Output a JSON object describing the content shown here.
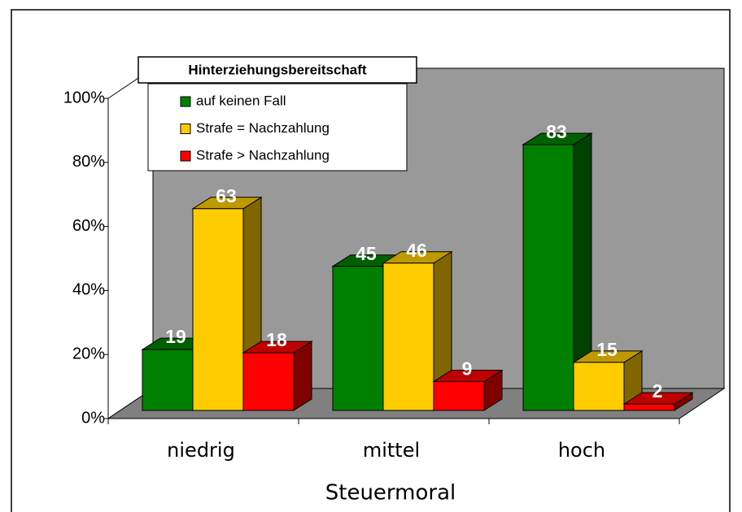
{
  "chart_data": {
    "type": "bar3d",
    "legend_title": "Hinterziehungsbereitschaft",
    "x_label": "Steuermoral",
    "categories": [
      "niedrig",
      "mittel",
      "hoch"
    ],
    "series": [
      {
        "name": "auf keinen Fall",
        "color": "#008000",
        "values": [
          19,
          45,
          83
        ]
      },
      {
        "name": "Strafe = Nachzahlung",
        "color": "#ffcc00",
        "values": [
          63,
          46,
          15
        ]
      },
      {
        "name": "Strafe > Nachzahlung",
        "color": "#ff0000",
        "values": [
          18,
          9,
          2
        ]
      }
    ],
    "ylim": [
      0,
      100
    ],
    "yticks": [
      {
        "value": 0,
        "label": "0%"
      },
      {
        "value": 20,
        "label": "20%"
      },
      {
        "value": 40,
        "label": "40%"
      },
      {
        "value": 60,
        "label": "60%"
      },
      {
        "value": 80,
        "label": "80%"
      },
      {
        "value": 100,
        "label": "100%"
      }
    ],
    "legend": "top-left"
  }
}
